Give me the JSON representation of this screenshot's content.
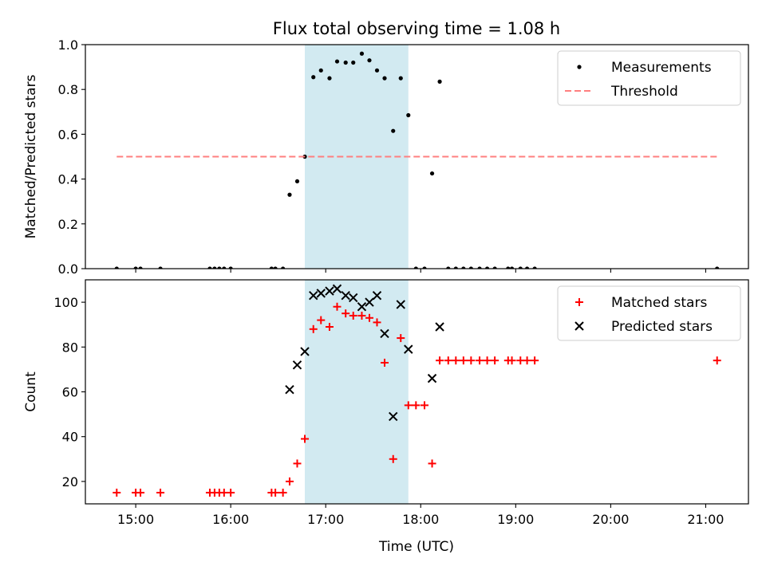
{
  "title": "Flux total observing time = 1.08 h",
  "xlabel": "Time (UTC)",
  "x_tick_labels": [
    "15:00",
    "16:00",
    "17:00",
    "18:00",
    "19:00",
    "20:00",
    "21:00"
  ],
  "colors": {
    "measurement": "#000000",
    "threshold": "#ff7f7f",
    "matched": "#ff0000",
    "predicted": "#000000",
    "span": "#add8e6"
  },
  "chart_data": [
    {
      "type": "scatter",
      "ylabel": "Matched/Predicted stars",
      "xlim": [
        14.47,
        21.45
      ],
      "ylim": [
        0,
        1.0
      ],
      "y_ticks": [
        0.0,
        0.2,
        0.4,
        0.6,
        0.8,
        1.0
      ],
      "y_tick_labels": [
        "0.0",
        "0.2",
        "0.4",
        "0.6",
        "0.8",
        "1.0"
      ],
      "highlight_span": {
        "x": [
          16.78,
          17.87
        ]
      },
      "legend": {
        "position": "top-right",
        "entries": [
          "Measurements",
          "Threshold"
        ]
      },
      "series": [
        {
          "name": "Measurements",
          "marker": "dot",
          "points": [
            [
              14.8,
              0
            ],
            [
              15.0,
              0
            ],
            [
              15.05,
              0
            ],
            [
              15.26,
              0
            ],
            [
              15.78,
              0
            ],
            [
              15.83,
              0
            ],
            [
              15.88,
              0
            ],
            [
              15.93,
              0
            ],
            [
              16.0,
              0
            ],
            [
              16.43,
              0
            ],
            [
              16.47,
              0
            ],
            [
              16.55,
              0
            ],
            [
              16.62,
              0.33
            ],
            [
              16.7,
              0.39
            ],
            [
              16.78,
              0.5
            ],
            [
              16.87,
              0.855
            ],
            [
              16.95,
              0.885
            ],
            [
              17.04,
              0.85
            ],
            [
              17.12,
              0.925
            ],
            [
              17.21,
              0.92
            ],
            [
              17.29,
              0.92
            ],
            [
              17.38,
              0.96
            ],
            [
              17.46,
              0.93
            ],
            [
              17.54,
              0.885
            ],
            [
              17.62,
              0.85
            ],
            [
              17.71,
              0.615
            ],
            [
              17.79,
              0.85
            ],
            [
              17.87,
              0.685
            ],
            [
              17.95,
              0
            ],
            [
              18.04,
              0
            ],
            [
              18.12,
              0.425
            ],
            [
              18.2,
              0.835
            ],
            [
              18.29,
              0
            ],
            [
              18.37,
              0
            ],
            [
              18.45,
              0
            ],
            [
              18.53,
              0
            ],
            [
              18.62,
              0
            ],
            [
              18.7,
              0
            ],
            [
              18.78,
              0
            ],
            [
              18.92,
              0
            ],
            [
              18.96,
              0
            ],
            [
              19.05,
              0
            ],
            [
              19.12,
              0
            ],
            [
              19.2,
              0
            ],
            [
              21.12,
              0
            ]
          ]
        },
        {
          "name": "Threshold",
          "style": "dashed",
          "x": [
            14.8,
            21.12
          ],
          "y": [
            0.5,
            0.5
          ]
        }
      ]
    },
    {
      "type": "scatter",
      "ylabel": "Count",
      "xlim": [
        14.47,
        21.45
      ],
      "ylim": [
        10,
        110
      ],
      "y_ticks": [
        20,
        40,
        60,
        80,
        100
      ],
      "y_tick_labels": [
        "20",
        "40",
        "60",
        "80",
        "100"
      ],
      "highlight_span": {
        "x": [
          16.78,
          17.87
        ]
      },
      "legend": {
        "position": "top-right",
        "entries": [
          "Matched stars",
          "Predicted stars"
        ]
      },
      "series": [
        {
          "name": "Matched stars",
          "marker": "plus",
          "points": [
            [
              14.8,
              15
            ],
            [
              15.0,
              15
            ],
            [
              15.05,
              15
            ],
            [
              15.26,
              15
            ],
            [
              15.78,
              15
            ],
            [
              15.83,
              15
            ],
            [
              15.88,
              15
            ],
            [
              15.93,
              15
            ],
            [
              16.0,
              15
            ],
            [
              16.43,
              15
            ],
            [
              16.47,
              15
            ],
            [
              16.55,
              15
            ],
            [
              16.62,
              20
            ],
            [
              16.7,
              28
            ],
            [
              16.78,
              39
            ],
            [
              16.87,
              88
            ],
            [
              16.95,
              92
            ],
            [
              17.04,
              89
            ],
            [
              17.12,
              98
            ],
            [
              17.21,
              95
            ],
            [
              17.29,
              94
            ],
            [
              17.38,
              94
            ],
            [
              17.46,
              93
            ],
            [
              17.54,
              91
            ],
            [
              17.62,
              73
            ],
            [
              17.71,
              30
            ],
            [
              17.79,
              84
            ],
            [
              17.87,
              54
            ],
            [
              17.95,
              54
            ],
            [
              18.04,
              54
            ],
            [
              18.12,
              28
            ],
            [
              18.2,
              74
            ],
            [
              18.29,
              74
            ],
            [
              18.37,
              74
            ],
            [
              18.45,
              74
            ],
            [
              18.53,
              74
            ],
            [
              18.62,
              74
            ],
            [
              18.7,
              74
            ],
            [
              18.78,
              74
            ],
            [
              18.92,
              74
            ],
            [
              18.96,
              74
            ],
            [
              19.05,
              74
            ],
            [
              19.12,
              74
            ],
            [
              19.2,
              74
            ],
            [
              21.12,
              74
            ]
          ]
        },
        {
          "name": "Predicted stars",
          "marker": "x",
          "points": [
            [
              16.62,
              61
            ],
            [
              16.7,
              72
            ],
            [
              16.78,
              78
            ],
            [
              16.87,
              103
            ],
            [
              16.95,
              104
            ],
            [
              17.04,
              105
            ],
            [
              17.12,
              106
            ],
            [
              17.21,
              103
            ],
            [
              17.29,
              102
            ],
            [
              17.38,
              98
            ],
            [
              17.46,
              100
            ],
            [
              17.54,
              103
            ],
            [
              17.62,
              86
            ],
            [
              17.71,
              49
            ],
            [
              17.79,
              99
            ],
            [
              17.87,
              79
            ],
            [
              18.12,
              66
            ],
            [
              18.2,
              89
            ]
          ]
        }
      ]
    }
  ]
}
